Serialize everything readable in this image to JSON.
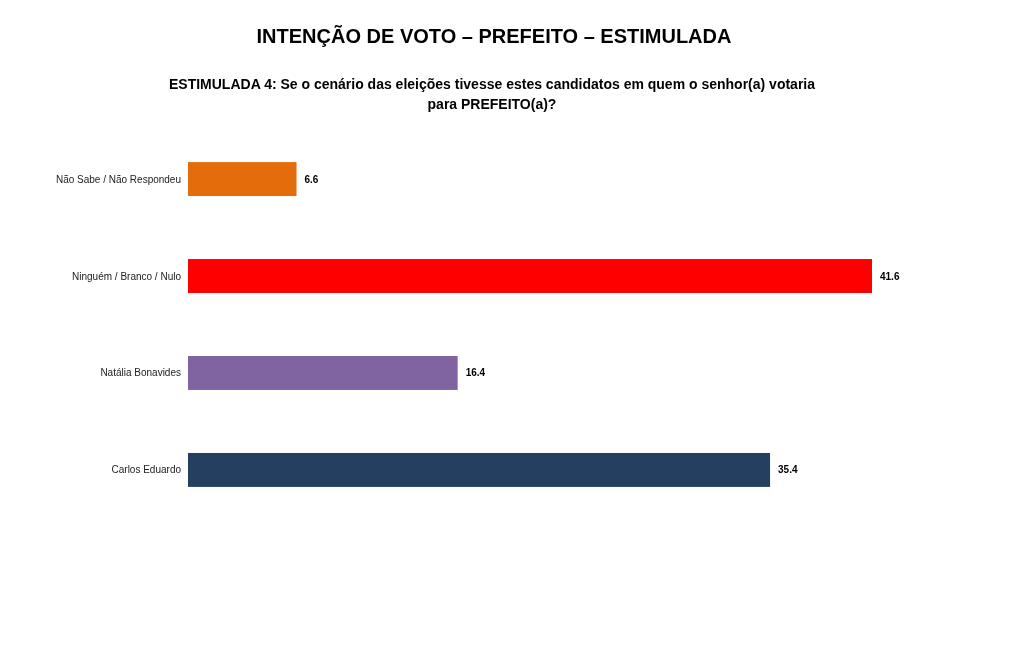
{
  "chart_data": {
    "type": "bar",
    "orientation": "horizontal",
    "title": "INTENÇÃO DE VOTO – PREFEITO – ESTIMULADA",
    "subtitle": "ESTIMULADA 4: Se o cenário das eleições tivesse estes candidatos em quem o senhor(a) votaria para PREFEITO(a)?",
    "categories": [
      "Não Sabe / Não Respondeu",
      "Ninguém / Branco / Nulo",
      "Natália Bonavides",
      "Carlos Eduardo"
    ],
    "values": [
      6.6,
      41.6,
      16.4,
      35.4
    ],
    "colors": [
      "#e46c0a",
      "#ff0000",
      "#8064a2",
      "#243f60"
    ],
    "data_labels": true,
    "grid": false
  }
}
